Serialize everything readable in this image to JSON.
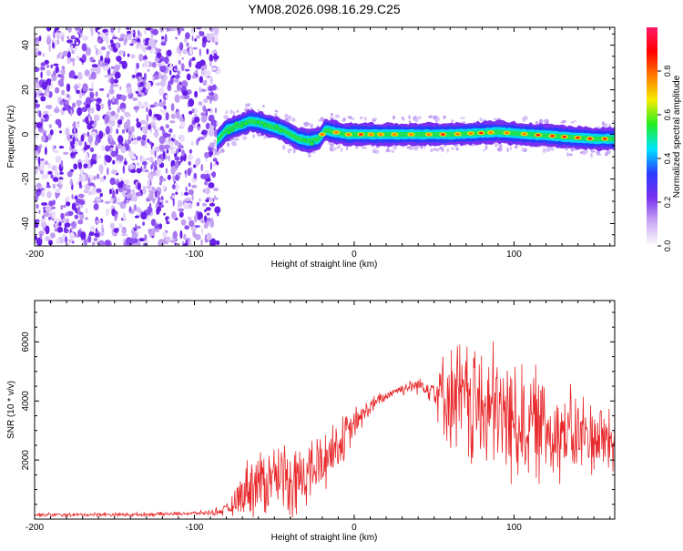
{
  "title": "YM08.2026.098.16.29.C25",
  "chart_data": [
    {
      "type": "heatmap",
      "xlabel": "Height of straight line (km)",
      "ylabel": "Frequency (Hz)",
      "xlim": [
        -200,
        163
      ],
      "ylim": [
        -50,
        48
      ],
      "xticks": [
        -200,
        -100,
        0,
        100
      ],
      "xtick_labels": [
        "-200",
        "-100",
        "0",
        "100"
      ],
      "yticks": [
        -40,
        -20,
        0,
        20,
        40
      ],
      "ytick_labels": [
        "-40",
        "-20",
        "0",
        "20",
        "40"
      ],
      "noise_region_x": [
        -200,
        -83
      ],
      "ridge": {
        "x": [
          -86,
          -80,
          -72,
          -65,
          -58,
          -50,
          -45,
          -40,
          -35,
          -28,
          -22,
          -18,
          -12,
          -5,
          0,
          10,
          30,
          60,
          90,
          110,
          130,
          150,
          163
        ],
        "frequency": [
          -3,
          2,
          4,
          6,
          5,
          3,
          2,
          0,
          -2,
          -3,
          -2,
          2,
          1,
          0,
          0,
          0,
          0,
          0,
          1,
          0,
          -1,
          -2,
          -2
        ]
      },
      "colorbar": {
        "label": "Normalized spectral amplitude",
        "range": [
          0,
          1
        ],
        "ticks": [
          0.0,
          0.2,
          0.4,
          0.6,
          0.8
        ],
        "tick_labels": [
          "0.0",
          "0.2",
          "0.4",
          "0.6",
          "0.8"
        ],
        "stops": [
          "#ffffff",
          "#c9a8f2",
          "#7a2ff0",
          "#2a3cff",
          "#00e5ff",
          "#22ee22",
          "#f4ec00",
          "#ff7a00",
          "#ff0000",
          "#ff1a66"
        ]
      }
    },
    {
      "type": "line",
      "xlabel": "Height of straight line (km)",
      "ylabel": "SNR (10 * v/v)",
      "xlim": [
        -200,
        163
      ],
      "ylim": [
        0,
        7400
      ],
      "xticks": [
        -200,
        -100,
        0,
        100
      ],
      "xtick_labels": [
        "-200",
        "-100",
        "0",
        "100"
      ],
      "yticks": [
        2000,
        4000,
        6000
      ],
      "ytick_labels": [
        "2000",
        "4000",
        "6000"
      ],
      "color": "#e8282a",
      "series": [
        {
          "name": "SNR",
          "x": [
            -200,
            -180,
            -160,
            -140,
            -120,
            -100,
            -90,
            -80,
            -75,
            -70,
            -65,
            -60,
            -55,
            -50,
            -45,
            -40,
            -35,
            -30,
            -25,
            -20,
            -15,
            -10,
            -5,
            0,
            5,
            10,
            15,
            20,
            25,
            30,
            35,
            40,
            45,
            50,
            55,
            60,
            65,
            70,
            75,
            80,
            85,
            90,
            95,
            100,
            105,
            110,
            115,
            120,
            125,
            130,
            135,
            140,
            145,
            150,
            155,
            163
          ],
          "base": [
            150,
            140,
            160,
            150,
            170,
            200,
            220,
            300,
            500,
            900,
            1200,
            1200,
            1300,
            1500,
            1600,
            1300,
            1400,
            1500,
            1700,
            1900,
            2300,
            2500,
            2800,
            3200,
            3500,
            3800,
            4000,
            4150,
            4350,
            4400,
            4500,
            4550,
            4500,
            4400,
            4250,
            4150,
            4050,
            3950,
            3800,
            3700,
            3650,
            3550,
            3450,
            3350,
            3300,
            3250,
            3200,
            3150,
            3000,
            2950,
            2850,
            2800,
            2850,
            2800,
            2750,
            2700
          ],
          "amp": [
            80,
            80,
            80,
            80,
            80,
            80,
            100,
            250,
            500,
            900,
            1300,
            1500,
            1500,
            1300,
            1300,
            1500,
            1600,
            1500,
            1500,
            1400,
            1200,
            1100,
            900,
            700,
            500,
            400,
            300,
            250,
            200,
            250,
            300,
            350,
            400,
            800,
            1500,
            2100,
            2500,
            2600,
            2700,
            2800,
            2800,
            2700,
            2700,
            2600,
            2500,
            2400,
            2300,
            2200,
            2100,
            2000,
            1900,
            1800,
            1700,
            1600,
            1600,
            1500
          ]
        }
      ]
    }
  ]
}
